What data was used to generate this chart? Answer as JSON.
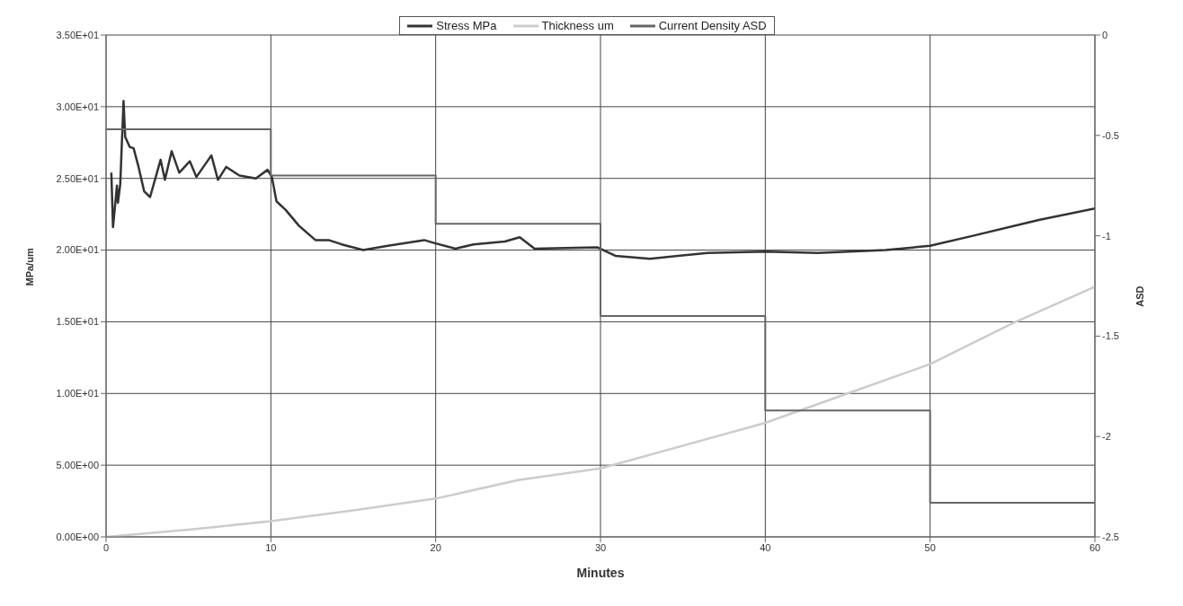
{
  "chart_data": {
    "type": "line",
    "xlabel": "Minutes",
    "ylabel": "MPa/um",
    "y2label": "ASD",
    "xlim": [
      0,
      60
    ],
    "xticks": [
      0,
      10,
      20,
      30,
      40,
      50,
      60
    ],
    "ylim": [
      0,
      35
    ],
    "yticks": [
      {
        "value": 0,
        "label": "0.00E+00"
      },
      {
        "value": 5,
        "label": "5.00E+00"
      },
      {
        "value": 10,
        "label": "1.00E+01"
      },
      {
        "value": 15,
        "label": "1.50E+01"
      },
      {
        "value": 20,
        "label": "2.00E+01"
      },
      {
        "value": 25,
        "label": "2.50E+01"
      },
      {
        "value": 30,
        "label": "3.00E+01"
      },
      {
        "value": 35,
        "label": "3.50E+01"
      }
    ],
    "y2lim": [
      -2.5,
      0
    ],
    "y2ticks": [
      -2.5,
      -2,
      -1.5,
      -1,
      -0.5,
      0
    ],
    "grid": true,
    "legend": "top",
    "marker": "none",
    "series": [
      {
        "name": "Stress MPa",
        "color": "#333333",
        "x": [
          0.32,
          0.42,
          0.66,
          0.72,
          0.86,
          1.06,
          1.16,
          1.43,
          1.67,
          1.97,
          2.31,
          2.67,
          3.31,
          3.57,
          3.98,
          4.44,
          5.08,
          5.48,
          6.39,
          6.79,
          7.29,
          8.09,
          9.09,
          9.8,
          10.06,
          10.34,
          10.9,
          11.7,
          12.7,
          13.5,
          14.3,
          15.6,
          17.1,
          19.3,
          19.9,
          21.2,
          22.3,
          24.2,
          25.1,
          26.0,
          29.8,
          30.9,
          33.0,
          36.5,
          40.0,
          43.2,
          47.3,
          50.0,
          52.6,
          56.6,
          60.0
        ],
        "values": [
          25.4,
          21.6,
          24.5,
          23.3,
          24.6,
          30.4,
          27.9,
          27.2,
          27.1,
          25.8,
          24.1,
          23.7,
          26.3,
          24.9,
          26.9,
          25.4,
          26.2,
          25.1,
          26.6,
          24.9,
          25.8,
          25.2,
          25.0,
          25.6,
          25.1,
          23.4,
          22.8,
          21.7,
          20.7,
          20.7,
          20.4,
          20.0,
          20.3,
          20.7,
          20.5,
          20.1,
          20.4,
          20.6,
          20.9,
          20.1,
          20.2,
          19.6,
          19.4,
          19.8,
          19.9,
          19.8,
          20.0,
          20.3,
          21.0,
          22.1,
          22.9
        ]
      },
      {
        "name": "Thickness um",
        "color": "#cccccc",
        "x": [
          0,
          5,
          10,
          15,
          20,
          25,
          30,
          40,
          45,
          50,
          55,
          60
        ],
        "values": [
          0,
          0.5,
          1.1,
          1.85,
          2.67,
          3.96,
          4.77,
          7.95,
          10.0,
          12.05,
          14.9,
          17.45
        ]
      },
      {
        "name": "Current Density ASD",
        "type": "step",
        "axis": "y2",
        "color": "#666666",
        "x": [
          0,
          10,
          20,
          30,
          40,
          50,
          60
        ],
        "values": [
          -0.47,
          -0.7,
          -0.94,
          -1.4,
          -1.87,
          -2.33,
          -2.33
        ]
      }
    ]
  }
}
